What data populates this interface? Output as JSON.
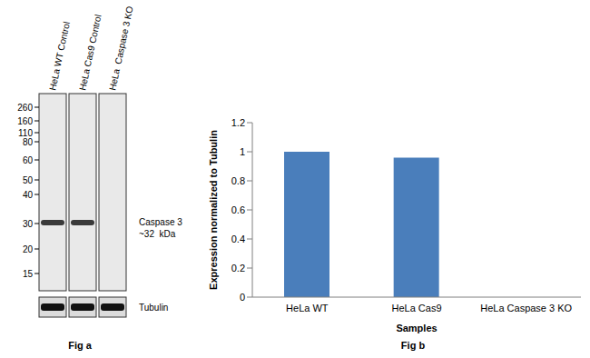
{
  "chart_data": {
    "type": "bar",
    "caption": "Fig b",
    "x_label": "Samples",
    "y_label": "Expression  normalized to Tubulin",
    "categories": [
      "HeLa WT",
      "HeLa Cas9",
      "HeLa Caspase 3 KO"
    ],
    "values": [
      1,
      0.96,
      0
    ],
    "color": "#4a7ebb",
    "ylim": [
      0,
      1.2
    ],
    "yticks": [
      0,
      0.2,
      0.4,
      0.6,
      0.8,
      1,
      1.2
    ],
    "grid": false
  },
  "blot": {
    "caption": "Fig a",
    "lanes": [
      "HeLa WT Control",
      "HeLa Cas9 Control",
      "HeLa  Caspase 3 KO"
    ],
    "markers": [
      260,
      160,
      110,
      80,
      60,
      50,
      40,
      30,
      20,
      15
    ],
    "target": {
      "label": "Caspase 3",
      "size_label": "~32  kDa",
      "present": [
        true,
        true,
        false
      ]
    },
    "loading_control": {
      "label": "Tubulin",
      "present": [
        true,
        true,
        true
      ]
    }
  }
}
